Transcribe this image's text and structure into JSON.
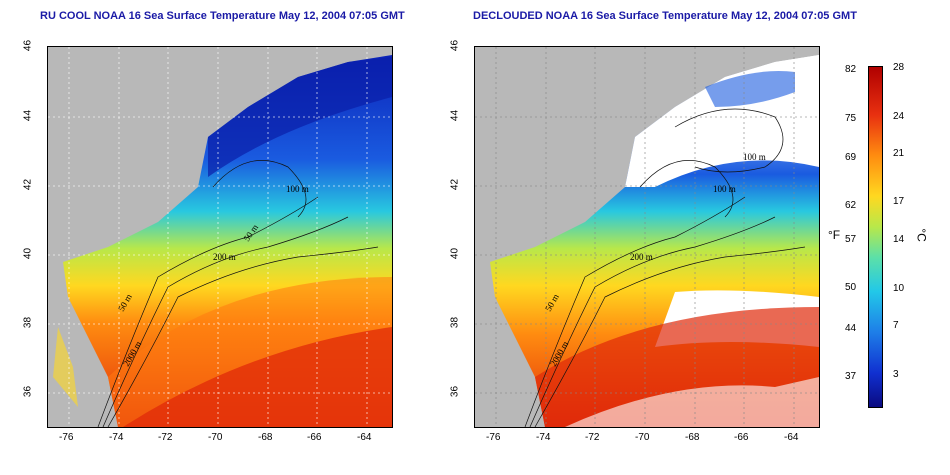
{
  "titles": {
    "left": "RU COOL NOAA 16 Sea Surface Temperature May 12, 2004 07:05 GMT",
    "right": "DECLOUDED NOAA 16 Sea Surface Temperature May 12, 2004 07:05 GMT"
  },
  "axes": {
    "lat_ticks": [
      "46",
      "44",
      "42",
      "40",
      "38",
      "36"
    ],
    "lon_ticks": [
      "-76",
      "-74",
      "-72",
      "-70",
      "-68",
      "-66",
      "-64"
    ]
  },
  "contours": {
    "left": [
      "100 m",
      "50 m",
      "200 m",
      "50 m",
      "2000 m"
    ],
    "right": [
      "100 m",
      "100 m",
      "200 m",
      "50 m",
      "2000 m"
    ]
  },
  "colorbar": {
    "fahrenheit_label": "°F",
    "celsius_label": "°C",
    "fahrenheit_ticks": [
      "82",
      "75",
      "69",
      "62",
      "57",
      "50",
      "44",
      "37"
    ],
    "celsius_ticks": [
      "28",
      "24",
      "21",
      "17",
      "14",
      "10",
      "7",
      "3"
    ]
  },
  "colors": {
    "land": "#b8b8b8",
    "cold": "#0a2fd0",
    "mid": "#30d0e0",
    "warm": "#ffd820",
    "hot": "#e83010",
    "title": "#1a1aa6"
  }
}
